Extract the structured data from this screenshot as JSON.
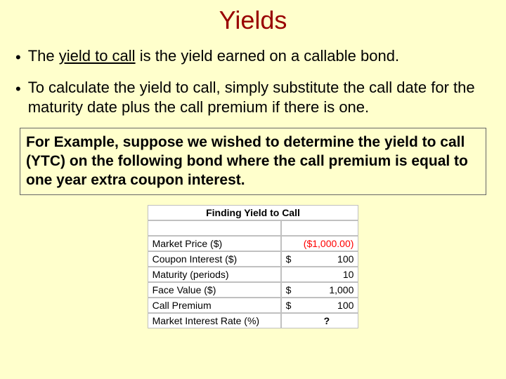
{
  "title": "Yields",
  "bullets": {
    "b1_pre": "The ",
    "b1_ul": "yield to call",
    "b1_post": " is the yield earned on a callable bond.",
    "b2": "To calculate the yield to call, simply substitute the call date for the maturity date plus the call premium if there is one."
  },
  "example": "For Example, suppose we wished to determine the yield to call (YTC) on the following bond where the call premium is equal to one year extra coupon interest.",
  "table": {
    "header": "Finding Yield to Call",
    "rows": [
      {
        "label": "Market Price ($)",
        "cur": "",
        "val": "($1,000.00)",
        "neg": true
      },
      {
        "label": "Coupon Interest ($)",
        "cur": "$",
        "val": "100"
      },
      {
        "label": "Maturity (periods)",
        "cur": "",
        "val": "10"
      },
      {
        "label": "Face Value ($)",
        "cur": "$",
        "val": "1,000"
      },
      {
        "label": "Call Premium",
        "cur": "$",
        "val": "100"
      },
      {
        "label": "Market Interest Rate (%)",
        "cur": "",
        "val": "?",
        "centered": true,
        "bold": true
      }
    ]
  }
}
